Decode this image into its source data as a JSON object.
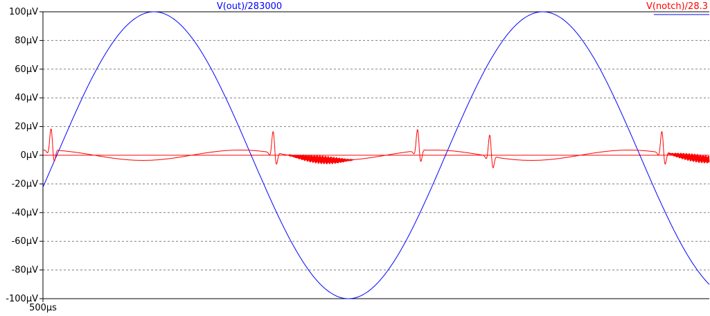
{
  "chart_data": {
    "type": "line",
    "y_unit": "µV",
    "yticks": [
      {
        "value": 100,
        "label": "100µV"
      },
      {
        "value": 80,
        "label": "80µV"
      },
      {
        "value": 60,
        "label": "60µV"
      },
      {
        "value": 40,
        "label": "40µV"
      },
      {
        "value": 20,
        "label": "20µV"
      },
      {
        "value": 0,
        "label": "0µV"
      },
      {
        "value": -20,
        "label": "-20µV"
      },
      {
        "value": -40,
        "label": "-40µV"
      },
      {
        "value": -60,
        "label": "-60µV"
      },
      {
        "value": -80,
        "label": "-80µV"
      },
      {
        "value": -100,
        "label": "-100µV"
      }
    ],
    "ylim": [
      -100,
      100
    ],
    "xticks": [
      {
        "label": "500µs"
      }
    ],
    "grid": true,
    "background": "#ffffff",
    "series": [
      {
        "name": "V(out)/283000",
        "color": "#0000ff",
        "shape": "sine",
        "amplitude": 100,
        "points": [
          [
            0,
            -6
          ],
          [
            0.5,
            50
          ],
          [
            1,
            100
          ],
          [
            1.5,
            50
          ],
          [
            2,
            -20
          ],
          [
            2.75,
            -100
          ],
          [
            3.5,
            -20
          ],
          [
            4,
            50
          ],
          [
            4.5,
            100
          ],
          [
            5,
            50
          ],
          [
            5.5,
            -25
          ],
          [
            6,
            -54
          ]
        ]
      },
      {
        "name": "V(notch)/28.3",
        "color": "#ff0000",
        "shape": "notch-residual",
        "min": -18,
        "max": 10,
        "points": [
          [
            0,
            -7
          ],
          [
            0.1,
            9
          ],
          [
            0.3,
            -1
          ],
          [
            0.9,
            -4.5
          ],
          [
            1.5,
            3.5
          ],
          [
            2,
            -4
          ],
          [
            2.05,
            8
          ],
          [
            2.15,
            -18
          ],
          [
            2.3,
            -6
          ],
          [
            2.7,
            9
          ],
          [
            3.3,
            -7
          ],
          [
            4,
            9
          ],
          [
            4.6,
            -4.5
          ],
          [
            5.2,
            3.5
          ],
          [
            5.6,
            -18
          ],
          [
            5.8,
            -6
          ],
          [
            6,
            5
          ]
        ]
      }
    ]
  },
  "colors": {
    "axis": "#000000",
    "grid": "#7f7f7f",
    "zero_line": "#ff0000"
  }
}
